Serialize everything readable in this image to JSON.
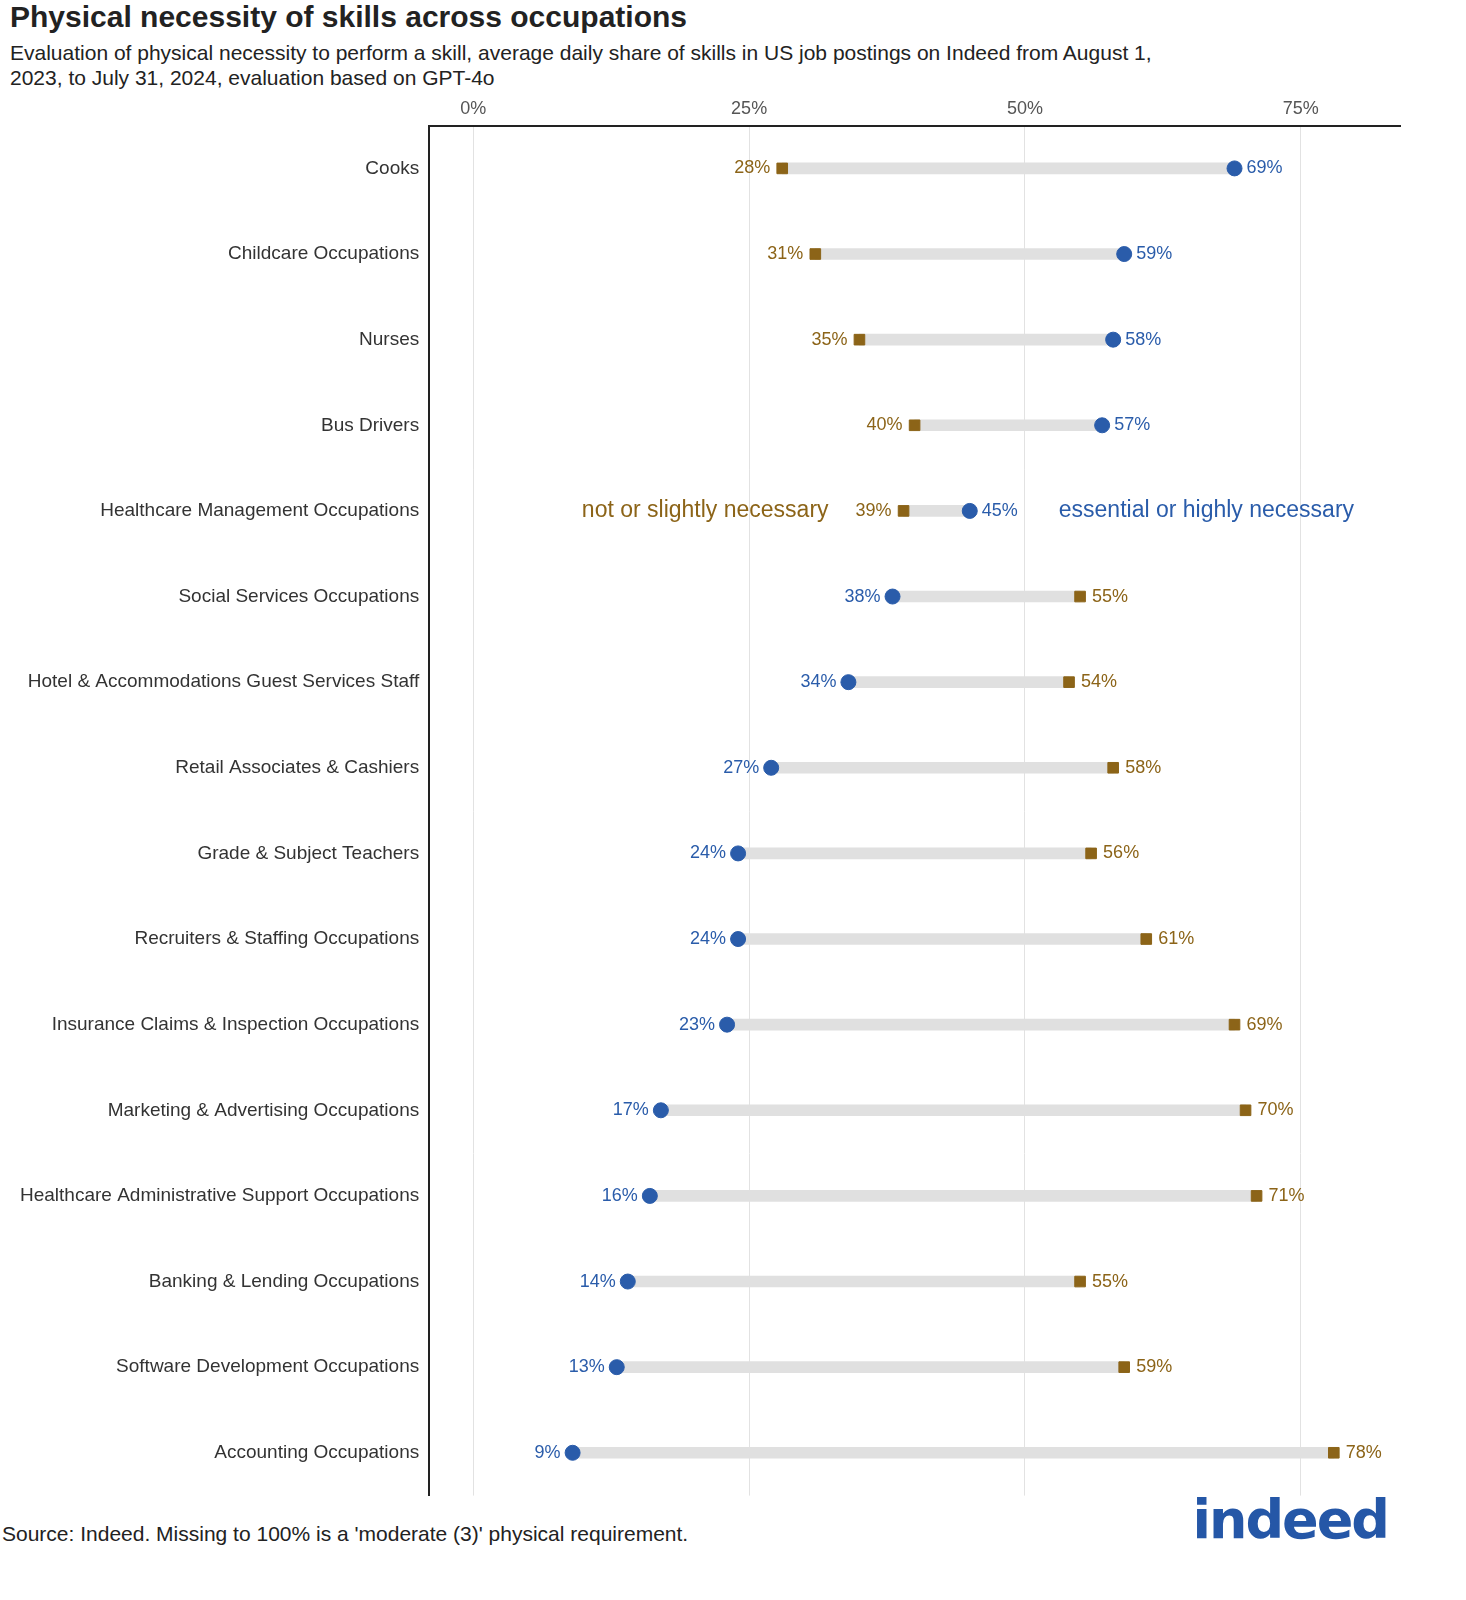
{
  "chart_data": {
    "type": "dumbbell",
    "orientation": "horizontal",
    "title": "Physical necessity of skills across occupations",
    "subtitle": "Evaluation of physical necessity to perform a skill, average daily share of skills in US job postings on Indeed from August 1, 2023, to July 31, 2024, evaluation based on GPT-4o",
    "source": "Source: Indeed. Missing to 100% is a 'moderate (3)' physical requirement.",
    "logo": "indeed",
    "categories": [
      "Cooks",
      "Childcare Occupations",
      "Nurses",
      "Bus Drivers",
      "Healthcare Management Occupations",
      "Social Services Occupations",
      "Hotel & Accommodations Guest Services Staff",
      "Retail Associates & Cashiers",
      "Grade & Subject Teachers",
      "Recruiters & Staffing Occupations",
      "Insurance Claims & Inspection Occupations",
      "Marketing & Advertising Occupations",
      "Healthcare Administrative Support Occupations",
      "Banking & Lending Occupations",
      "Software Development Occupations",
      "Accounting Occupations"
    ],
    "series": [
      {
        "name": "not or slightly necessary",
        "color": "#8c6418",
        "marker": "square",
        "values": [
          28,
          31,
          35,
          40,
          39,
          55,
          54,
          58,
          56,
          61,
          69,
          70,
          71,
          55,
          59,
          78
        ],
        "value_labels": [
          "28%",
          "31%",
          "35%",
          "40%",
          "39%",
          "55%",
          "54%",
          "58%",
          "56%",
          "61%",
          "69%",
          "70%",
          "71%",
          "55%",
          "59%",
          "78%"
        ]
      },
      {
        "name": "essential or highly necessary",
        "color": "#2a5caa",
        "marker": "circle",
        "values": [
          69,
          59,
          58,
          57,
          45,
          38,
          34,
          27,
          24,
          24,
          23,
          17,
          16,
          14,
          13,
          9
        ],
        "value_labels": [
          "69%",
          "59%",
          "58%",
          "57%",
          "45%",
          "38%",
          "34%",
          "27%",
          "24%",
          "24%",
          "23%",
          "17%",
          "16%",
          "14%",
          "13%",
          "9%"
        ]
      }
    ],
    "xlim": [
      -4,
      84
    ],
    "xticks": [
      {
        "value": 0,
        "label": "0%"
      },
      {
        "value": 25,
        "label": "25%"
      },
      {
        "value": 50,
        "label": "50%"
      },
      {
        "value": 75,
        "label": "75%"
      }
    ],
    "grid": true,
    "data_labels": true
  }
}
